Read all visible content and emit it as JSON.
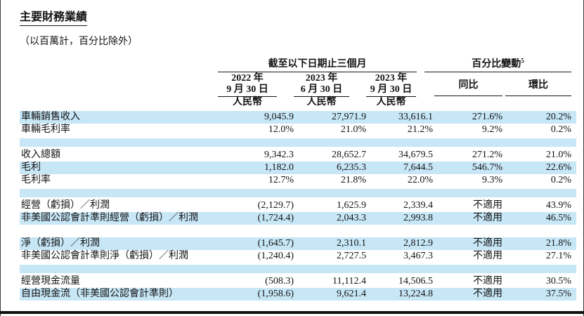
{
  "page": {
    "title": "主要財務業績",
    "subtitle": "（以百萬計，百分比除外）"
  },
  "table": {
    "colors": {
      "row_highlight": "#c7e6f6"
    },
    "group_headers": [
      {
        "label": "截至以下日期止三個月"
      },
      {
        "label": "百分比變動",
        "superscript": "5"
      }
    ],
    "period_columns": [
      {
        "year_line": "2022 年",
        "date_line": "9 月 30 日",
        "currency": "人民幣"
      },
      {
        "year_line": "2023 年",
        "date_line": "6 月 30 日",
        "currency": "人民幣"
      },
      {
        "year_line": "2023 年",
        "date_line": "9 月 30 日",
        "currency": "人民幣"
      }
    ],
    "change_columns": [
      {
        "label": "同比"
      },
      {
        "label": "環比"
      }
    ],
    "rows": [
      {
        "type": "data",
        "shaded": true,
        "label": "車輛銷售收入",
        "values": [
          "9,045.9",
          "27,971.9",
          "33,616.1",
          "271.6%",
          "20.2%"
        ]
      },
      {
        "type": "data",
        "shaded": false,
        "label": "車輛毛利率",
        "values": [
          "12.0%",
          "21.0%",
          "21.2%",
          "9.2%",
          "0.2%"
        ]
      },
      {
        "type": "separator",
        "shaded": true
      },
      {
        "type": "data",
        "shaded": false,
        "label": "收入總額",
        "values": [
          "9,342.3",
          "28,652.7",
          "34,679.5",
          "271.2%",
          "21.0%"
        ]
      },
      {
        "type": "data",
        "shaded": true,
        "label": "毛利",
        "values": [
          "1,182.0",
          "6,235.3",
          "7,644.5",
          "546.7%",
          "22.6%"
        ]
      },
      {
        "type": "data",
        "shaded": false,
        "label": "毛利率",
        "values": [
          "12.7%",
          "21.8%",
          "22.0%",
          "9.3%",
          "0.2%"
        ]
      },
      {
        "type": "separator",
        "shaded": true
      },
      {
        "type": "data",
        "shaded": false,
        "label": "經營（虧損）／利潤",
        "values": [
          "(2,129.7)",
          "1,625.9",
          "2,339.4",
          "不適用",
          "43.9%"
        ]
      },
      {
        "type": "data",
        "shaded": true,
        "label": "非美國公認會計準則經營（虧損）／利潤",
        "values": [
          "(1,724.4)",
          "2,043.3",
          "2,993.8",
          "不適用",
          "46.5%"
        ]
      },
      {
        "type": "separator",
        "shaded": false
      },
      {
        "type": "data",
        "shaded": true,
        "label": "淨（虧損）／利潤",
        "values": [
          "(1,645.7)",
          "2,310.1",
          "2,812.9",
          "不適用",
          "21.8%"
        ]
      },
      {
        "type": "data",
        "shaded": false,
        "label": "非美國公認會計準則淨（虧損）／利潤",
        "values": [
          "(1,240.4)",
          "2,727.5",
          "3,467.3",
          "不適用",
          "27.1%"
        ]
      },
      {
        "type": "separator",
        "shaded": true
      },
      {
        "type": "data",
        "shaded": false,
        "label": "經營現金流量",
        "values": [
          "(508.3)",
          "11,112.4",
          "14,506.5",
          "不適用",
          "30.5%"
        ]
      },
      {
        "type": "data",
        "shaded": true,
        "label": "自由現金流（非美國公認會計準則）",
        "values": [
          "(1,958.6)",
          "9,621.4",
          "13,224.8",
          "不適用",
          "37.5%"
        ]
      }
    ]
  }
}
